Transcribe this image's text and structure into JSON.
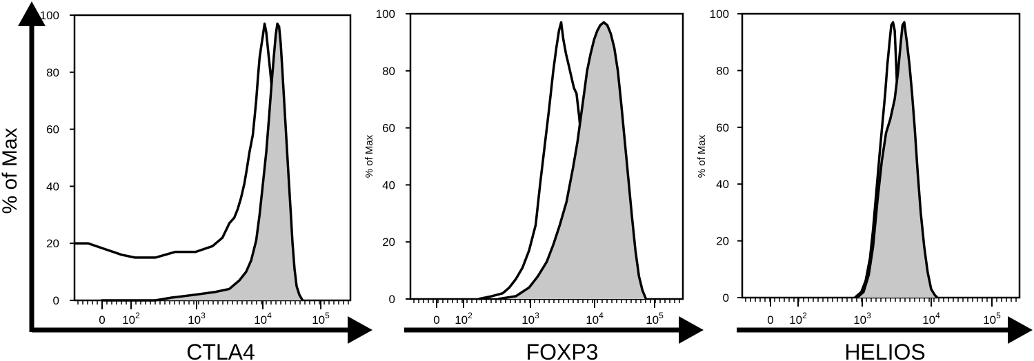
{
  "colors": {
    "line": "#000000",
    "fill": "#c8c8c8",
    "background": "#ffffff"
  },
  "chart_data": [
    {
      "type": "area",
      "panel": "CTLA4",
      "xlabel": "CTLA4",
      "ylabel": "% of Max",
      "x_scale": "biexponential (log above 10^2)",
      "ylim": [
        0,
        100
      ],
      "yticks": [
        "0",
        "20",
        "40",
        "60",
        "80",
        "100"
      ],
      "xticks": [
        "0",
        "10",
        "10",
        "10",
        "10"
      ],
      "xtick_exponents": [
        "",
        "2",
        "3",
        "4",
        "5"
      ],
      "series": [
        {
          "role": "open",
          "points": [
            [
              -2.4,
              20
            ],
            [
              -2.0,
              20
            ],
            [
              -1.5,
              18
            ],
            [
              -1.0,
              16
            ],
            [
              -0.6,
              15
            ],
            [
              0,
              15
            ],
            [
              0.6,
              17
            ],
            [
              1.2,
              17
            ],
            [
              1.7,
              19
            ],
            [
              2.0,
              22
            ],
            [
              2.2,
              27
            ],
            [
              2.35,
              29
            ],
            [
              2.45,
              32
            ],
            [
              2.55,
              36
            ],
            [
              2.65,
              41
            ],
            [
              2.72,
              46
            ],
            [
              2.8,
              52
            ],
            [
              2.9,
              58
            ],
            [
              2.95,
              64
            ],
            [
              3.0,
              70
            ],
            [
              3.05,
              78
            ],
            [
              3.1,
              85
            ],
            [
              3.15,
              89
            ],
            [
              3.2,
              93
            ],
            [
              3.25,
              97
            ],
            [
              3.3,
              94
            ],
            [
              3.35,
              88
            ],
            [
              3.42,
              80
            ],
            [
              3.5,
              70
            ],
            [
              3.58,
              58
            ],
            [
              3.65,
              45
            ],
            [
              3.72,
              32
            ],
            [
              3.8,
              20
            ],
            [
              3.88,
              11
            ],
            [
              3.96,
              5
            ],
            [
              4.05,
              2
            ],
            [
              4.15,
              0
            ]
          ]
        },
        {
          "role": "filled",
          "points": [
            [
              -1.6,
              0
            ],
            [
              0,
              0
            ],
            [
              0.5,
              1
            ],
            [
              1.2,
              2
            ],
            [
              1.8,
              3
            ],
            [
              2.2,
              4
            ],
            [
              2.5,
              7
            ],
            [
              2.7,
              10
            ],
            [
              2.85,
              14
            ],
            [
              3.0,
              21
            ],
            [
              3.1,
              30
            ],
            [
              3.2,
              41
            ],
            [
              3.3,
              52
            ],
            [
              3.38,
              64
            ],
            [
              3.45,
              75
            ],
            [
              3.52,
              85
            ],
            [
              3.58,
              93
            ],
            [
              3.63,
              97
            ],
            [
              3.68,
              96
            ],
            [
              3.73,
              90
            ],
            [
              3.78,
              80
            ],
            [
              3.84,
              68
            ],
            [
              3.9,
              56
            ],
            [
              3.96,
              44
            ],
            [
              4.02,
              32
            ],
            [
              4.08,
              20
            ],
            [
              4.14,
              11
            ],
            [
              4.2,
              5
            ],
            [
              4.28,
              2
            ],
            [
              4.38,
              0
            ]
          ]
        }
      ]
    },
    {
      "type": "area",
      "panel": "FOXP3",
      "xlabel": "FOXP3",
      "ylabel": "% of Max",
      "x_scale": "biexponential (log above 10^2)",
      "ylim": [
        0,
        100
      ],
      "yticks": [
        "0",
        "20",
        "40",
        "60",
        "80",
        "100"
      ],
      "xticks": [
        "0",
        "10",
        "10",
        "10",
        "10"
      ],
      "xtick_exponents": [
        "",
        "2",
        "3",
        "4",
        "5"
      ],
      "series": [
        {
          "role": "open",
          "points": [
            [
              1.45,
              0
            ],
            [
              1.75,
              1
            ],
            [
              2.0,
              2
            ],
            [
              2.15,
              4
            ],
            [
              2.3,
              7
            ],
            [
              2.45,
              11
            ],
            [
              2.6,
              17
            ],
            [
              2.75,
              26
            ],
            [
              2.85,
              40
            ],
            [
              2.95,
              53
            ],
            [
              3.05,
              66
            ],
            [
              3.15,
              80
            ],
            [
              3.22,
              88
            ],
            [
              3.28,
              94
            ],
            [
              3.33,
              97
            ],
            [
              3.38,
              91
            ],
            [
              3.44,
              86
            ],
            [
              3.5,
              82
            ],
            [
              3.56,
              78
            ],
            [
              3.62,
              74
            ],
            [
              3.68,
              72
            ],
            [
              3.74,
              64
            ],
            [
              3.8,
              54
            ],
            [
              3.86,
              42
            ],
            [
              3.92,
              30
            ],
            [
              3.98,
              20
            ],
            [
              4.05,
              11
            ],
            [
              4.12,
              5
            ],
            [
              4.2,
              2
            ],
            [
              4.3,
              0
            ]
          ]
        },
        {
          "role": "filled",
          "points": [
            [
              1.9,
              0
            ],
            [
              2.3,
              1
            ],
            [
              2.6,
              4
            ],
            [
              2.8,
              8
            ],
            [
              3.0,
              13
            ],
            [
              3.15,
              19
            ],
            [
              3.3,
              26
            ],
            [
              3.45,
              34
            ],
            [
              3.6,
              46
            ],
            [
              3.7,
              55
            ],
            [
              3.78,
              64
            ],
            [
              3.85,
              72
            ],
            [
              3.92,
              80
            ],
            [
              4.0,
              86
            ],
            [
              4.08,
              91
            ],
            [
              4.15,
              94
            ],
            [
              4.22,
              96
            ],
            [
              4.3,
              97
            ],
            [
              4.38,
              96
            ],
            [
              4.46,
              93
            ],
            [
              4.54,
              88
            ],
            [
              4.62,
              80
            ],
            [
              4.7,
              68
            ],
            [
              4.78,
              55
            ],
            [
              4.86,
              42
            ],
            [
              4.94,
              29
            ],
            [
              5.02,
              17
            ],
            [
              5.1,
              8
            ],
            [
              5.18,
              3
            ],
            [
              5.26,
              0
            ]
          ]
        }
      ]
    },
    {
      "type": "area",
      "panel": "HELIOS",
      "xlabel": "HELIOS",
      "ylabel": "% of Max",
      "x_scale": "biexponential (log above 10^2)",
      "ylim": [
        0,
        100
      ],
      "yticks": [
        "0",
        "20",
        "40",
        "60",
        "80",
        "100"
      ],
      "xticks": [
        "0",
        "10",
        "10",
        "10",
        "10"
      ],
      "xtick_exponents": [
        "",
        "2",
        "3",
        "4",
        "5"
      ],
      "series": [
        {
          "role": "open",
          "points": [
            [
              2.3,
              0
            ],
            [
              2.45,
              2
            ],
            [
              2.55,
              6
            ],
            [
              2.65,
              14
            ],
            [
              2.72,
              24
            ],
            [
              2.8,
              38
            ],
            [
              2.88,
              52
            ],
            [
              2.94,
              62
            ],
            [
              3.0,
              72
            ],
            [
              3.05,
              82
            ],
            [
              3.1,
              90
            ],
            [
              3.14,
              96
            ],
            [
              3.18,
              97
            ],
            [
              3.22,
              94
            ],
            [
              3.26,
              80
            ],
            [
              3.3,
              62
            ],
            [
              3.34,
              44
            ],
            [
              3.38,
              30
            ],
            [
              3.42,
              18
            ],
            [
              3.47,
              8
            ],
            [
              3.52,
              3
            ],
            [
              3.6,
              0
            ]
          ]
        },
        {
          "role": "filled",
          "points": [
            [
              2.35,
              0
            ],
            [
              2.5,
              2
            ],
            [
              2.62,
              8
            ],
            [
              2.72,
              18
            ],
            [
              2.82,
              34
            ],
            [
              2.92,
              48
            ],
            [
              3.02,
              58
            ],
            [
              3.12,
              63
            ],
            [
              3.22,
              70
            ],
            [
              3.3,
              80
            ],
            [
              3.36,
              90
            ],
            [
              3.4,
              96
            ],
            [
              3.44,
              97
            ],
            [
              3.5,
              90
            ],
            [
              3.56,
              82
            ],
            [
              3.62,
              72
            ],
            [
              3.68,
              60
            ],
            [
              3.75,
              44
            ],
            [
              3.82,
              30
            ],
            [
              3.9,
              18
            ],
            [
              3.98,
              9
            ],
            [
              4.06,
              3
            ],
            [
              4.14,
              1
            ],
            [
              4.2,
              0
            ]
          ]
        }
      ]
    }
  ]
}
